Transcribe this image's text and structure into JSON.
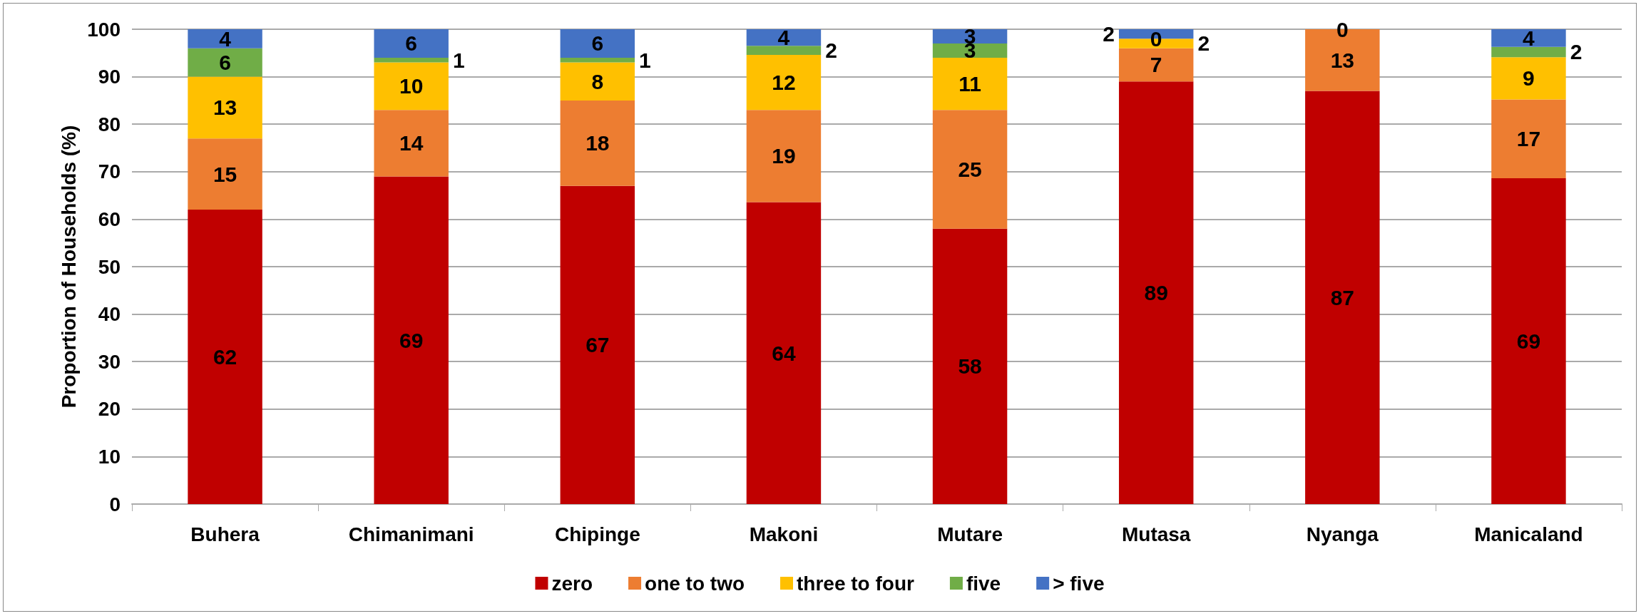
{
  "chart_data": {
    "type": "bar",
    "stacked": true,
    "ylabel": "Proportion of Households (%)",
    "categories": [
      "Buhera",
      "Chimanimani",
      "Chipinge",
      "Makoni",
      "Mutare",
      "Mutasa",
      "Nyanga",
      "Manicaland"
    ],
    "series": [
      {
        "name": "zero",
        "color": "#c00000",
        "values": [
          62,
          69,
          67,
          63.6,
          58,
          89,
          87,
          68.6
        ],
        "value_labels": [
          "62",
          "69",
          "67",
          "64",
          "58",
          "89",
          "87",
          "69"
        ]
      },
      {
        "name": "one to two",
        "color": "#ed7d31",
        "values": [
          15,
          14,
          18,
          19.4,
          25,
          7,
          13,
          16.6
        ],
        "value_labels": [
          "15",
          "14",
          "18",
          "19",
          "25",
          "7",
          "13",
          "17"
        ]
      },
      {
        "name": "three to four",
        "color": "#ffc000",
        "values": [
          13,
          10,
          8,
          11.6,
          11,
          2,
          0,
          8.9
        ],
        "value_labels": [
          "13",
          "10",
          "8",
          "12",
          "11",
          "2",
          null,
          "9"
        ]
      },
      {
        "name": "five",
        "color": "#70ad47",
        "values": [
          6,
          1,
          1,
          1.9,
          3,
          0,
          0,
          2.2
        ],
        "value_labels": [
          "6",
          "1",
          "1",
          "2",
          "3",
          "0",
          null,
          "2"
        ]
      },
      {
        "name": "> five",
        "color": "#4472c4",
        "values": [
          4,
          6,
          6,
          3.5,
          3,
          2,
          0,
          3.7
        ],
        "value_labels": [
          "4",
          "6",
          "6",
          "4",
          "3",
          "2",
          "0",
          "4"
        ]
      }
    ],
    "ylim": [
      0,
      100
    ],
    "yticks": [
      0,
      10,
      20,
      30,
      40,
      50,
      60,
      70,
      80,
      90,
      100
    ],
    "grid": "y",
    "legend": "bottom"
  }
}
